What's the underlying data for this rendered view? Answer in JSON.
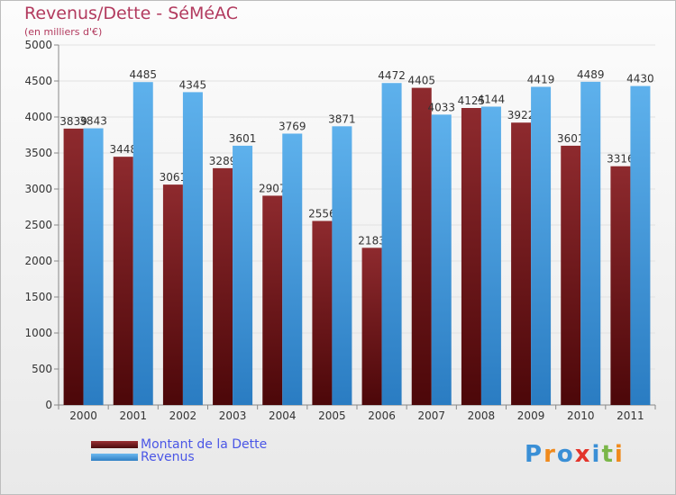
{
  "title": "Revenus/Dette - SéMéAC",
  "subtitle": "(en milliers d'€)",
  "colors": {
    "dette": "#7b1f22",
    "revenus": "#4aa3e4",
    "title": "#b23a5e",
    "legend_text": "#4a56e6"
  },
  "logo": {
    "text": "Proxiti",
    "letters": [
      "P",
      "r",
      "o",
      "x",
      "i",
      "t",
      "i"
    ],
    "colors": [
      "#3a8fd6",
      "#f08a1c",
      "#3a8fd6",
      "#e3342b",
      "#3a8fd6",
      "#7ab648",
      "#f08a1c"
    ]
  },
  "legend": [
    {
      "label": "Montant de la Dette",
      "color": "#7b1f22"
    },
    {
      "label": "Revenus",
      "color": "#4aa3e4"
    }
  ],
  "chart_data": {
    "type": "bar",
    "title": "Revenus/Dette - SéMéAC",
    "subtitle": "(en milliers d'€)",
    "categories": [
      "2000",
      "2001",
      "2002",
      "2003",
      "2004",
      "2005",
      "2006",
      "2007",
      "2008",
      "2009",
      "2010",
      "2011"
    ],
    "series": [
      {
        "name": "Montant de la Dette",
        "values": [
          3839,
          3448,
          3061,
          3289,
          2907,
          2556,
          2183,
          4405,
          4125,
          3922,
          3601,
          3316
        ]
      },
      {
        "name": "Revenus",
        "values": [
          3843,
          4485,
          4345,
          3601,
          3769,
          3871,
          4472,
          4033,
          4144,
          4419,
          4489,
          4430
        ]
      }
    ],
    "data_labels": [
      [
        "3839",
        "3448",
        "3061",
        "3289",
        "2907",
        "2556",
        "2183",
        "4405",
        "4125",
        "3922",
        "3601",
        "3316"
      ],
      [
        "3843",
        "4485",
        "4345",
        "3601",
        "3769",
        "3871",
        "4472",
        "4033",
        "4144",
        "4419",
        "4489",
        "4430"
      ]
    ],
    "yticks": [
      0,
      500,
      1000,
      1500,
      2000,
      2500,
      3000,
      3500,
      4000,
      4500,
      5000
    ],
    "ylim": [
      0,
      5000
    ],
    "grid": true,
    "legend_position": "bottom-left"
  }
}
